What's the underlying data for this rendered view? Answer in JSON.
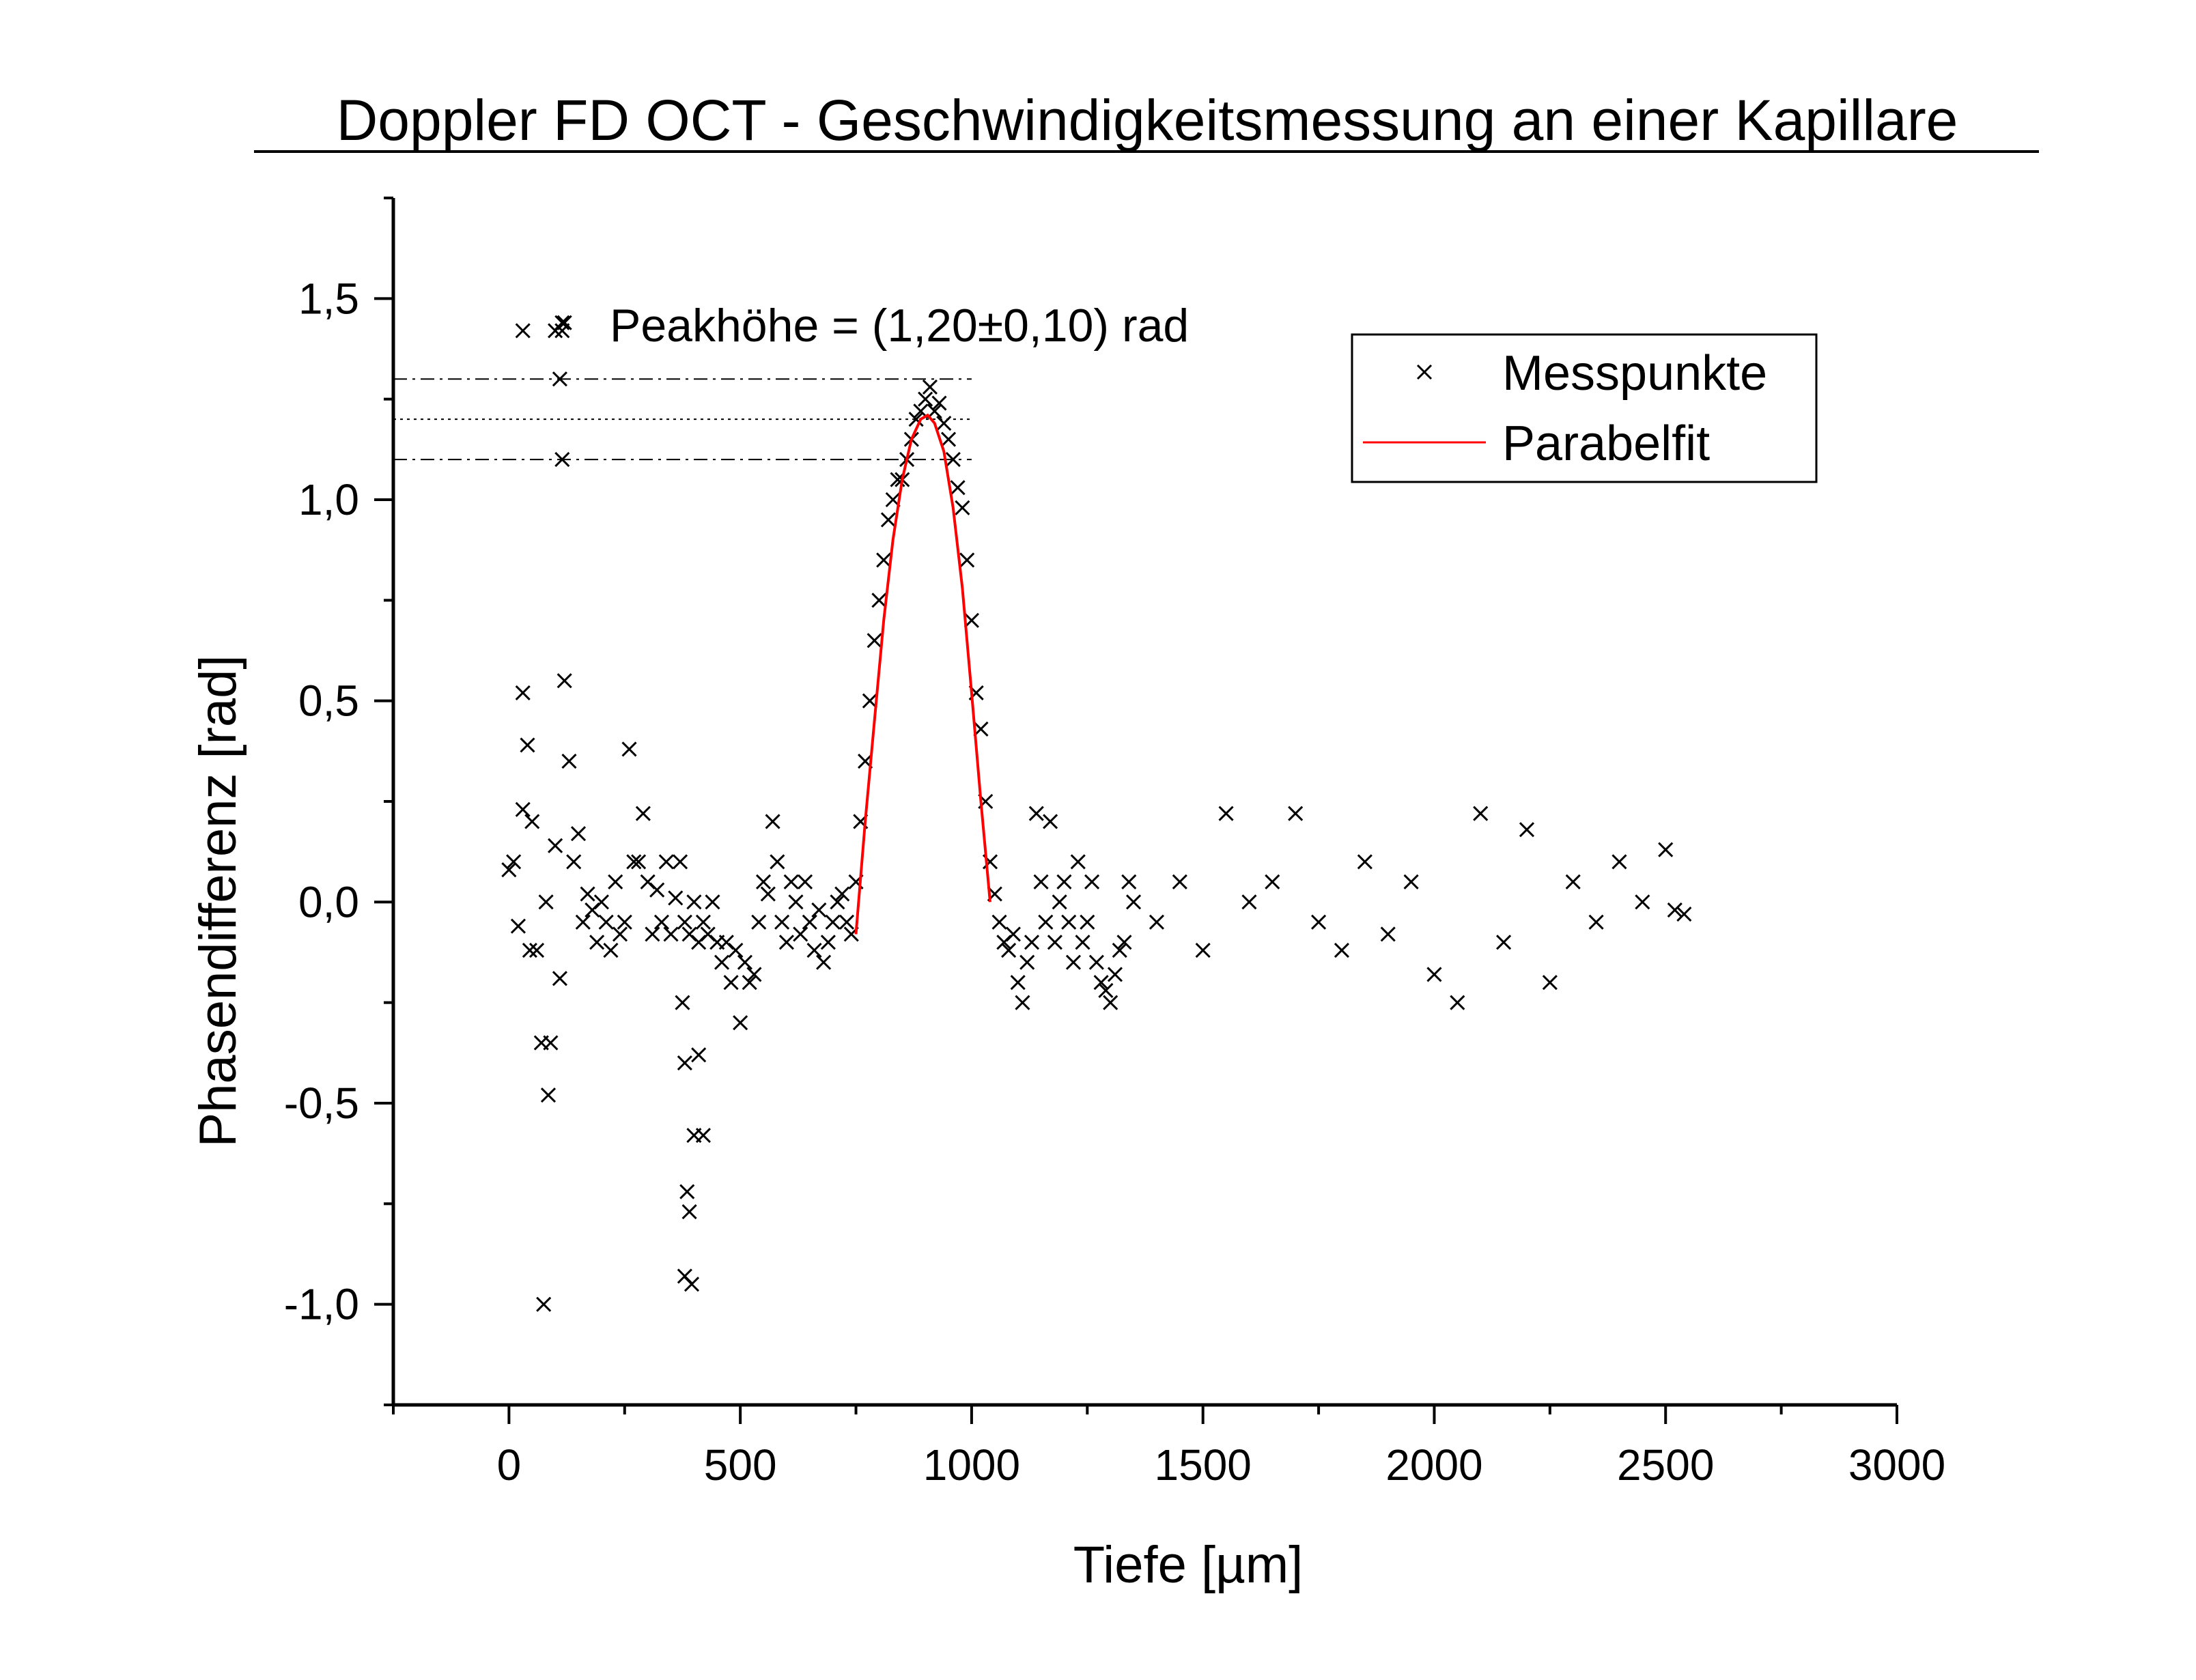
{
  "chart_data": {
    "type": "scatter",
    "title": "Doppler FD OCT - Geschwindigkeitsmessung an einer Kapillare",
    "xlabel": "Tiefe [µm]",
    "ylabel": "Phasendifferenz [rad]",
    "xlim": [
      -250,
      3000
    ],
    "ylim": [
      -1.25,
      1.75
    ],
    "xticks": [
      0,
      500,
      1000,
      1500,
      2000,
      2500,
      3000
    ],
    "xtick_labels": [
      "0",
      "500",
      "1000",
      "1500",
      "2000",
      "2500",
      "3000"
    ],
    "yticks": [
      -1.0,
      -0.5,
      0.0,
      0.5,
      1.0,
      1.5
    ],
    "ytick_labels": [
      "-1,0",
      "-0,5",
      "0,0",
      "0,5",
      "1,0",
      "1,5"
    ],
    "annotation": "Peakhöhe = (1,20±0,10) rad",
    "reference_lines": [
      {
        "y": 1.3,
        "style": "dash-dot"
      },
      {
        "y": 1.2,
        "style": "dotted"
      },
      {
        "y": 1.1,
        "style": "dash-dot"
      }
    ],
    "legend": {
      "position": "top-right",
      "entries": [
        "Messpunkte",
        "Parabelfit"
      ]
    },
    "series": [
      {
        "name": "Messpunkte",
        "marker": "x",
        "color": "#000000",
        "x": [
          0,
          10,
          20,
          30,
          40,
          50,
          60,
          70,
          80,
          90,
          100,
          110,
          120,
          130,
          140,
          150,
          160,
          170,
          180,
          190,
          200,
          210,
          220,
          230,
          240,
          250,
          260,
          270,
          280,
          290,
          300,
          310,
          320,
          330,
          340,
          350,
          360,
          370,
          380,
          390,
          400,
          410,
          420,
          430,
          440,
          450,
          460,
          470,
          480,
          490,
          500,
          510,
          520,
          530,
          540,
          550,
          560,
          570,
          580,
          590,
          600,
          610,
          620,
          630,
          640,
          650,
          660,
          670,
          680,
          690,
          700,
          710,
          720,
          730,
          740,
          750,
          760,
          770,
          780,
          790,
          800,
          810,
          820,
          830,
          840,
          850,
          860,
          870,
          880,
          890,
          900,
          910,
          920,
          930,
          940,
          950,
          960,
          970,
          980,
          990,
          1000,
          1010,
          1020,
          1030,
          1040,
          1050,
          1060,
          1070,
          1080,
          1090,
          1100,
          1110,
          1120,
          1130,
          1140,
          1150,
          1160,
          1170,
          1180,
          1190,
          1200,
          1210,
          1220,
          1230,
          1240,
          1250,
          1260,
          1270,
          1280,
          1290,
          1300,
          1310,
          1320,
          1330,
          1340,
          1350,
          1400,
          1450,
          1500,
          1550,
          1600,
          1650,
          1700,
          1750,
          1800,
          1850,
          1900,
          1950,
          2000,
          2050,
          2100,
          2150,
          2200,
          2250,
          2300,
          2350,
          2400,
          2450,
          2500,
          2520,
          2540,
          30,
          45,
          75,
          85,
          100,
          110,
          115,
          120,
          380,
          385,
          390,
          400,
          410,
          420,
          380,
          375,
          395
        ],
        "y": [
          0.08,
          0.1,
          -0.06,
          0.23,
          0.39,
          0.2,
          -0.12,
          -0.35,
          0.0,
          -0.35,
          0.14,
          -0.19,
          0.55,
          0.35,
          0.1,
          0.17,
          -0.05,
          0.02,
          -0.02,
          -0.1,
          0.0,
          -0.05,
          -0.12,
          0.05,
          -0.08,
          -0.05,
          0.38,
          0.1,
          0.1,
          0.22,
          0.05,
          -0.08,
          0.03,
          -0.05,
          0.1,
          -0.08,
          0.01,
          0.1,
          -0.05,
          -0.08,
          0.0,
          -0.1,
          -0.05,
          -0.08,
          0.0,
          -0.1,
          -0.15,
          -0.1,
          -0.2,
          -0.12,
          -0.3,
          -0.15,
          -0.2,
          -0.18,
          -0.05,
          0.05,
          0.02,
          0.2,
          0.1,
          -0.05,
          -0.1,
          0.05,
          0.0,
          -0.08,
          0.05,
          -0.05,
          -0.12,
          -0.02,
          -0.15,
          -0.1,
          -0.05,
          0.0,
          0.02,
          -0.05,
          -0.08,
          0.05,
          0.2,
          0.35,
          0.5,
          0.65,
          0.75,
          0.85,
          0.95,
          1.0,
          1.05,
          1.05,
          1.1,
          1.15,
          1.2,
          1.22,
          1.25,
          1.28,
          1.22,
          1.24,
          1.19,
          1.15,
          1.1,
          1.03,
          0.98,
          0.85,
          0.7,
          0.52,
          0.43,
          0.25,
          0.1,
          0.02,
          -0.05,
          -0.1,
          -0.12,
          -0.08,
          -0.2,
          -0.25,
          -0.15,
          -0.1,
          0.22,
          0.05,
          -0.05,
          0.2,
          -0.1,
          0.0,
          0.05,
          -0.05,
          -0.15,
          0.1,
          -0.1,
          -0.05,
          0.05,
          -0.15,
          -0.2,
          -0.22,
          -0.25,
          -0.18,
          -0.12,
          -0.1,
          0.05,
          0.0,
          -0.05,
          0.05,
          -0.12,
          0.22,
          0.0,
          0.05,
          0.22,
          -0.05,
          -0.12,
          0.1,
          -0.08,
          0.05,
          -0.18,
          -0.25,
          0.22,
          -0.1,
          0.18,
          -0.2,
          0.05,
          -0.05,
          0.1,
          0.0,
          0.13,
          -0.02,
          -0.03,
          0.52,
          -0.12,
          -1.0,
          -0.48,
          1.42,
          1.3,
          1.1,
          1.44,
          -0.4,
          -0.72,
          -0.77,
          -0.58,
          -0.38,
          -0.58,
          -0.93,
          -0.25,
          -0.95
        ]
      },
      {
        "name": "Parabelfit",
        "color": "#ff0000",
        "type": "line",
        "x": [
          750,
          770,
          790,
          810,
          830,
          850,
          870,
          890,
          905,
          920,
          940,
          960,
          980,
          1000,
          1020,
          1040
        ],
        "y": [
          -0.08,
          0.2,
          0.45,
          0.7,
          0.9,
          1.05,
          1.15,
          1.2,
          1.21,
          1.19,
          1.12,
          0.98,
          0.78,
          0.52,
          0.25,
          0.0
        ]
      }
    ]
  }
}
